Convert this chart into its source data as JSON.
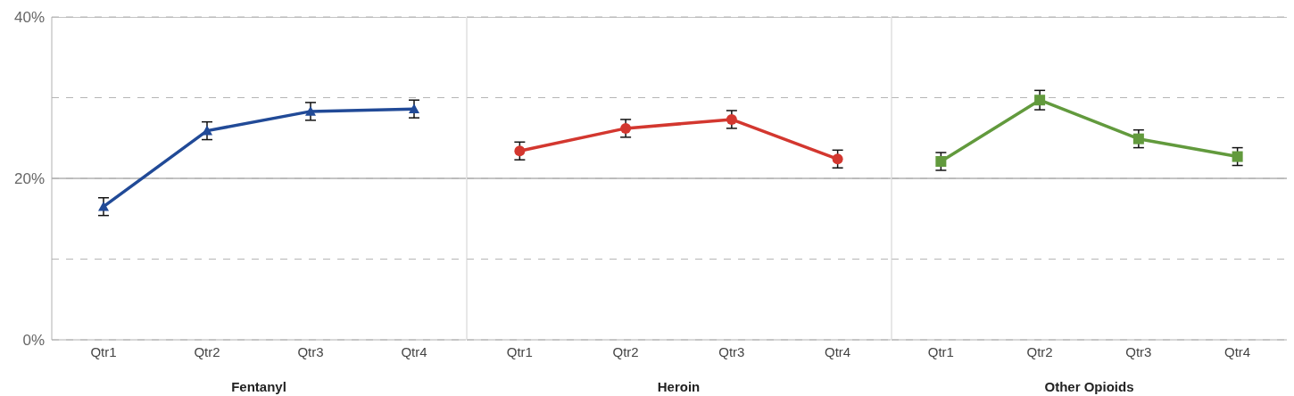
{
  "chart_data": [
    {
      "type": "line",
      "xlabel": "Fentanyl",
      "categories": [
        "Qtr1",
        "Qtr2",
        "Qtr3",
        "Qtr4"
      ],
      "marker": "triangle",
      "grid": "y",
      "ref_lines": [
        {
          "axis": "y",
          "value": 20,
          "color": "#b0b0b0",
          "line_style": "solid"
        },
        {
          "axis": "y",
          "value": 40,
          "color": "#b0b0b0",
          "line_style": "solid"
        }
      ],
      "series": [
        {
          "color": "#214a97",
          "values": [
            16.5,
            25.9,
            28.3,
            28.6
          ],
          "errors": [
            1.1,
            1.1,
            1.1,
            1.1
          ]
        }
      ],
      "ylim": [
        0,
        40
      ],
      "yticks": [
        {
          "value": 0,
          "label": "0%"
        },
        {
          "value": 10,
          "label": null
        },
        {
          "value": 20,
          "label": "20%"
        },
        {
          "value": 30,
          "label": null
        },
        {
          "value": 40,
          "label": "40%"
        }
      ]
    },
    {
      "type": "line",
      "xlabel": "Heroin",
      "categories": [
        "Qtr1",
        "Qtr2",
        "Qtr3",
        "Qtr4"
      ],
      "marker": "circle",
      "grid": "y",
      "tick_labels": "x",
      "ref_lines": [
        {
          "axis": "y",
          "value": 20,
          "color": "#b0b0b0",
          "line_style": "solid"
        },
        {
          "axis": "y",
          "value": 40,
          "color": "#b0b0b0",
          "line_style": "solid"
        }
      ],
      "series": [
        {
          "color": "#d3372f",
          "values": [
            23.4,
            26.2,
            27.3,
            22.4
          ],
          "errors": [
            1.1,
            1.1,
            1.1,
            1.1
          ]
        }
      ],
      "ylim": [
        0,
        40
      ],
      "yticks": [
        0,
        {
          "value": 10,
          "label": null
        },
        20,
        {
          "value": 30,
          "label": null
        },
        40
      ]
    },
    {
      "type": "line",
      "xlabel": "Other Opioids",
      "categories": [
        "Qtr1",
        "Qtr2",
        "Qtr3",
        "Qtr4"
      ],
      "marker": "square",
      "grid": "y",
      "tick_labels": "x",
      "ref_lines": [
        {
          "axis": "y",
          "value": 20,
          "color": "#b0b0b0",
          "line_style": "solid"
        },
        {
          "axis": "y",
          "value": 40,
          "color": "#b0b0b0",
          "line_style": "solid"
        }
      ],
      "series": [
        {
          "color": "#629a3d",
          "values": [
            22.1,
            29.7,
            24.9,
            22.7
          ],
          "errors": [
            1.1,
            1.2,
            1.1,
            1.1
          ]
        }
      ],
      "ylim": [
        0,
        40
      ],
      "yticks": [
        0,
        {
          "value": 10,
          "label": null
        },
        20,
        {
          "value": 30,
          "label": null
        },
        40
      ]
    }
  ]
}
